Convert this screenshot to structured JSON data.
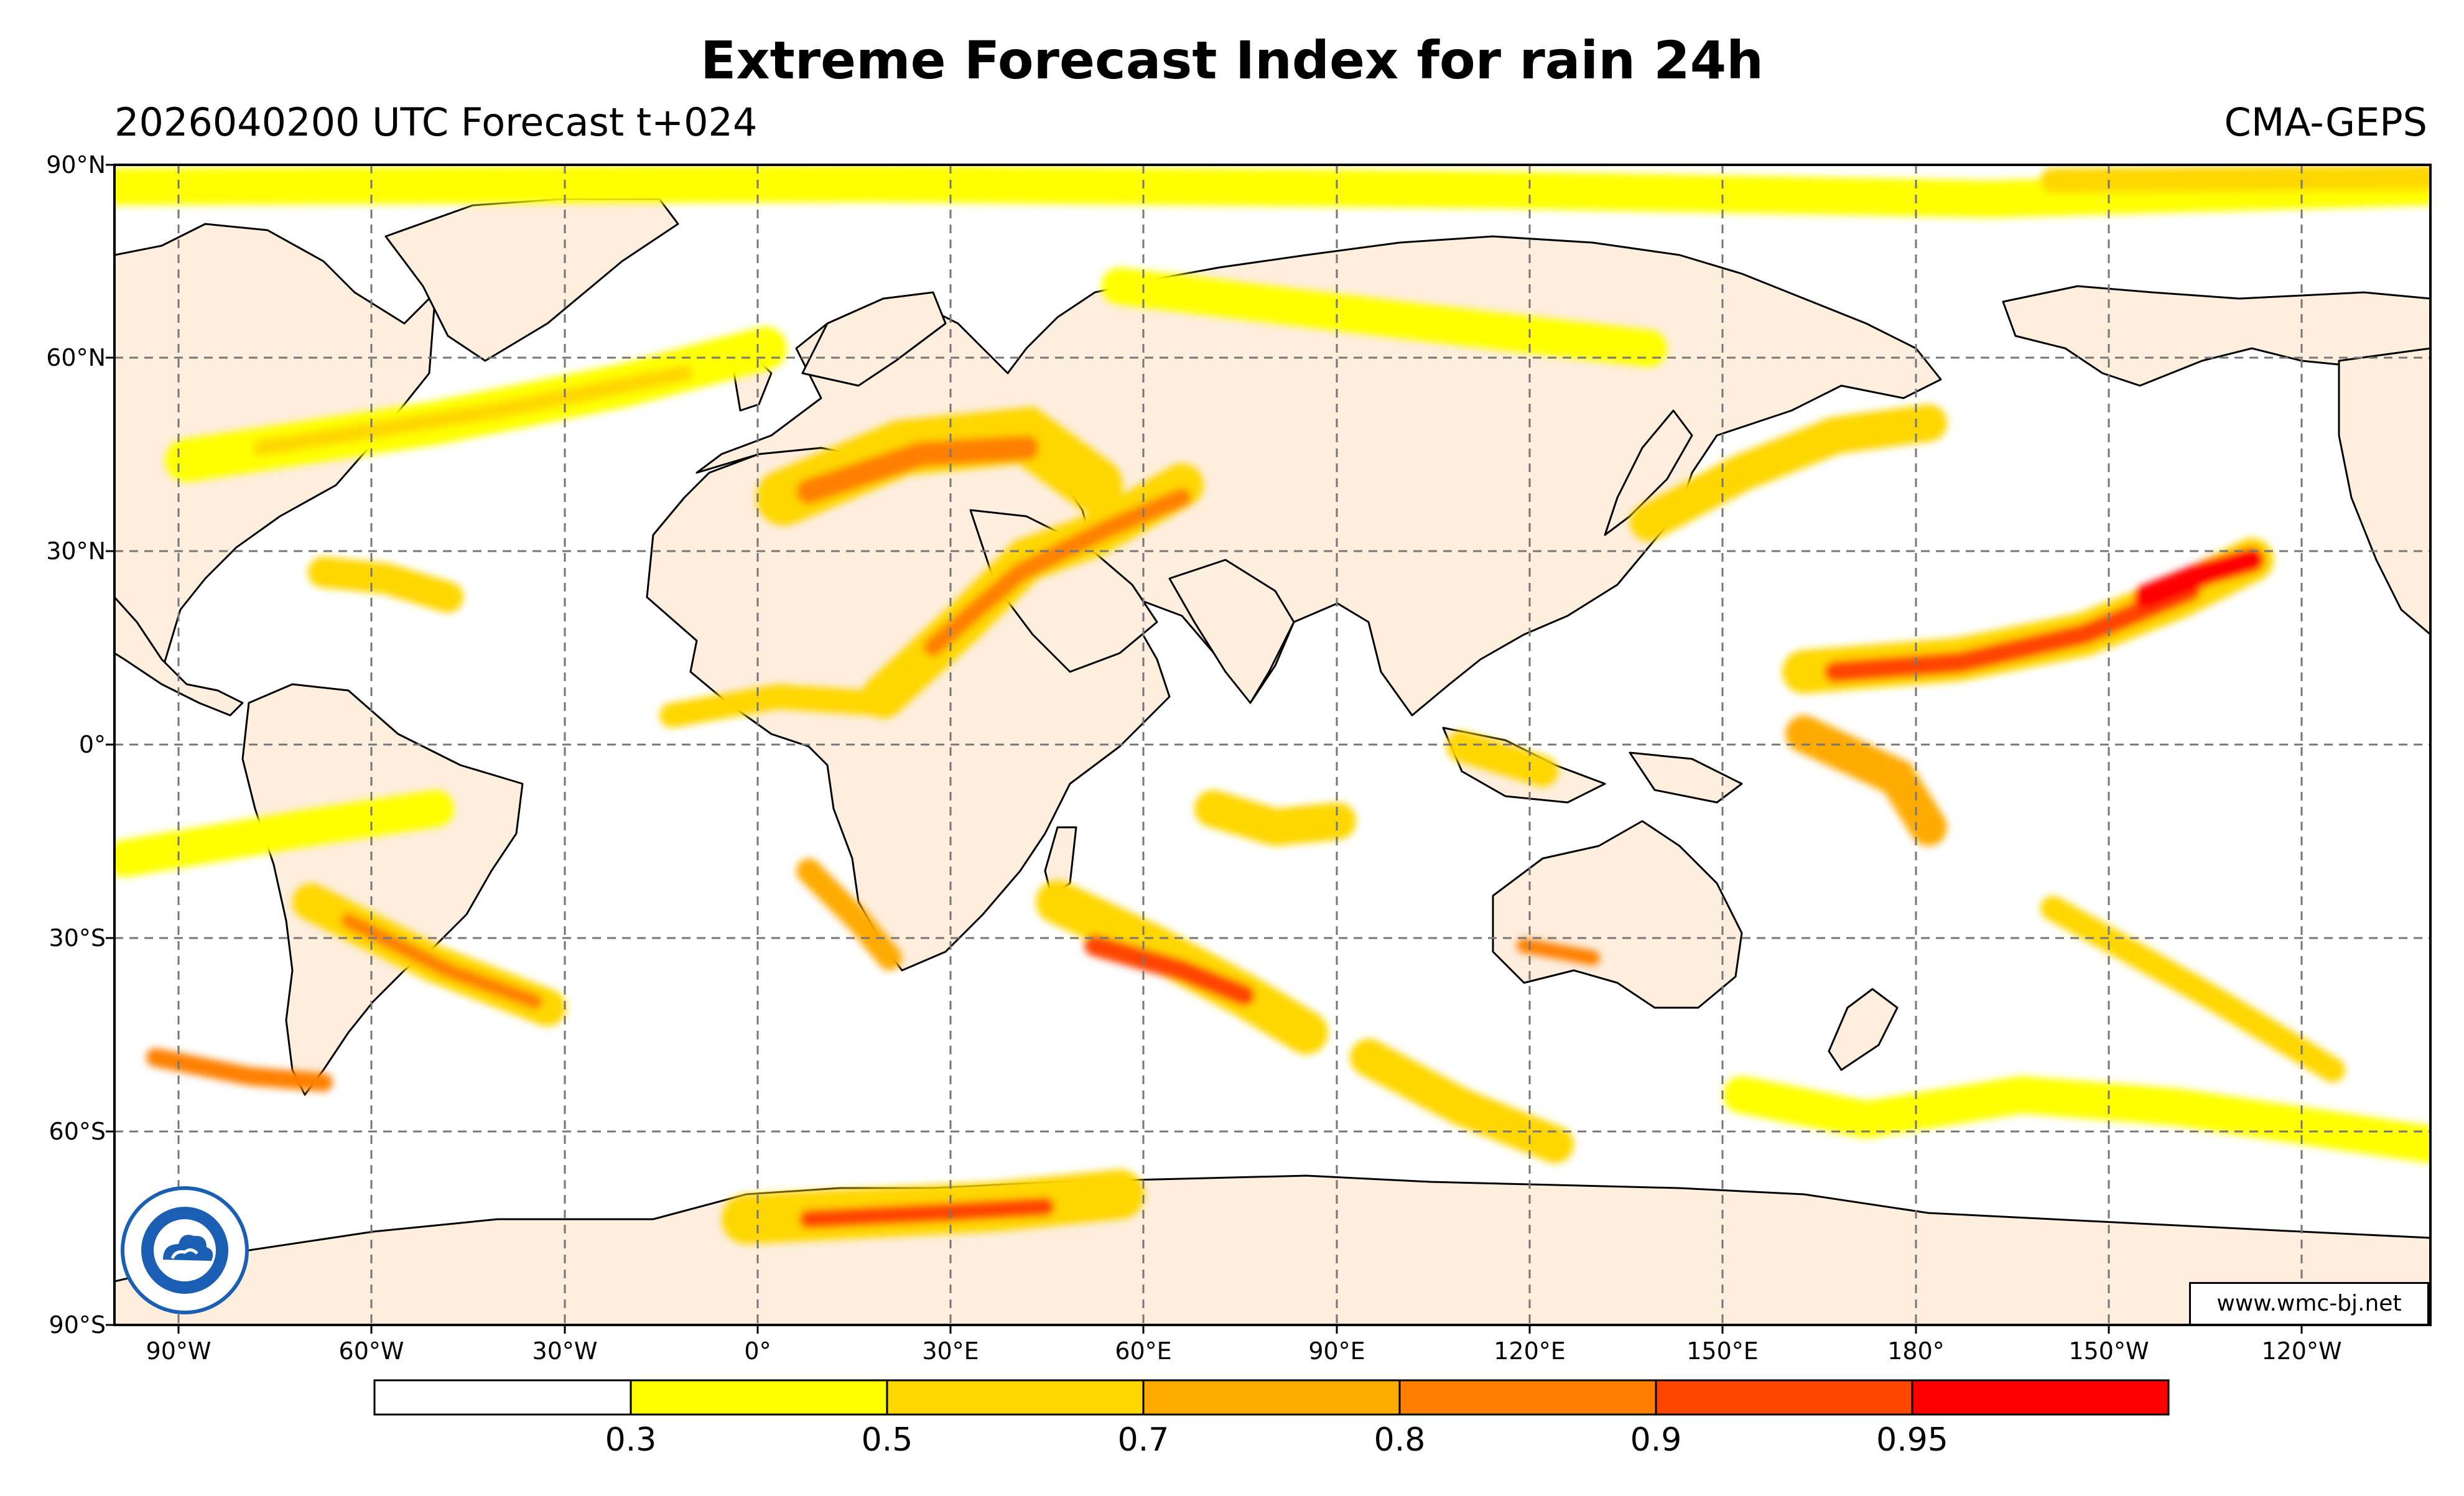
{
  "title": "Extreme Forecast Index for rain 24h",
  "subtitle": "2026040200 UTC Forecast t+024",
  "model": "CMA-GEPS",
  "credit": "www.wmc-bj.net",
  "map": {
    "projection": "equirectangular",
    "lon_range": [
      -100,
      260
    ],
    "lat_range": [
      -90,
      90
    ],
    "land_color": "#fdeede",
    "ocean_color": "#ffffff",
    "grid": "dashed gray every 30°",
    "lat_labels": [
      "90°N",
      "60°N",
      "30°N",
      "0°",
      "30°S",
      "60°S",
      "90°S"
    ],
    "lon_labels": [
      "90°W",
      "60°W",
      "30°W",
      "0°",
      "30°E",
      "60°E",
      "90°E",
      "120°E",
      "150°E",
      "180°",
      "150°W",
      "120°W"
    ]
  },
  "colorbar": {
    "colors": [
      "#ffffff",
      "#ffff00",
      "#ffd700",
      "#ffaa00",
      "#ff8000",
      "#ff4500",
      "#ff0000"
    ],
    "labels": [
      "0.3",
      "0.5",
      "0.7",
      "0.8",
      "0.9",
      "0.95"
    ]
  },
  "logo": {
    "icon": "cma-logo-icon",
    "color": "#1a5fb4"
  }
}
